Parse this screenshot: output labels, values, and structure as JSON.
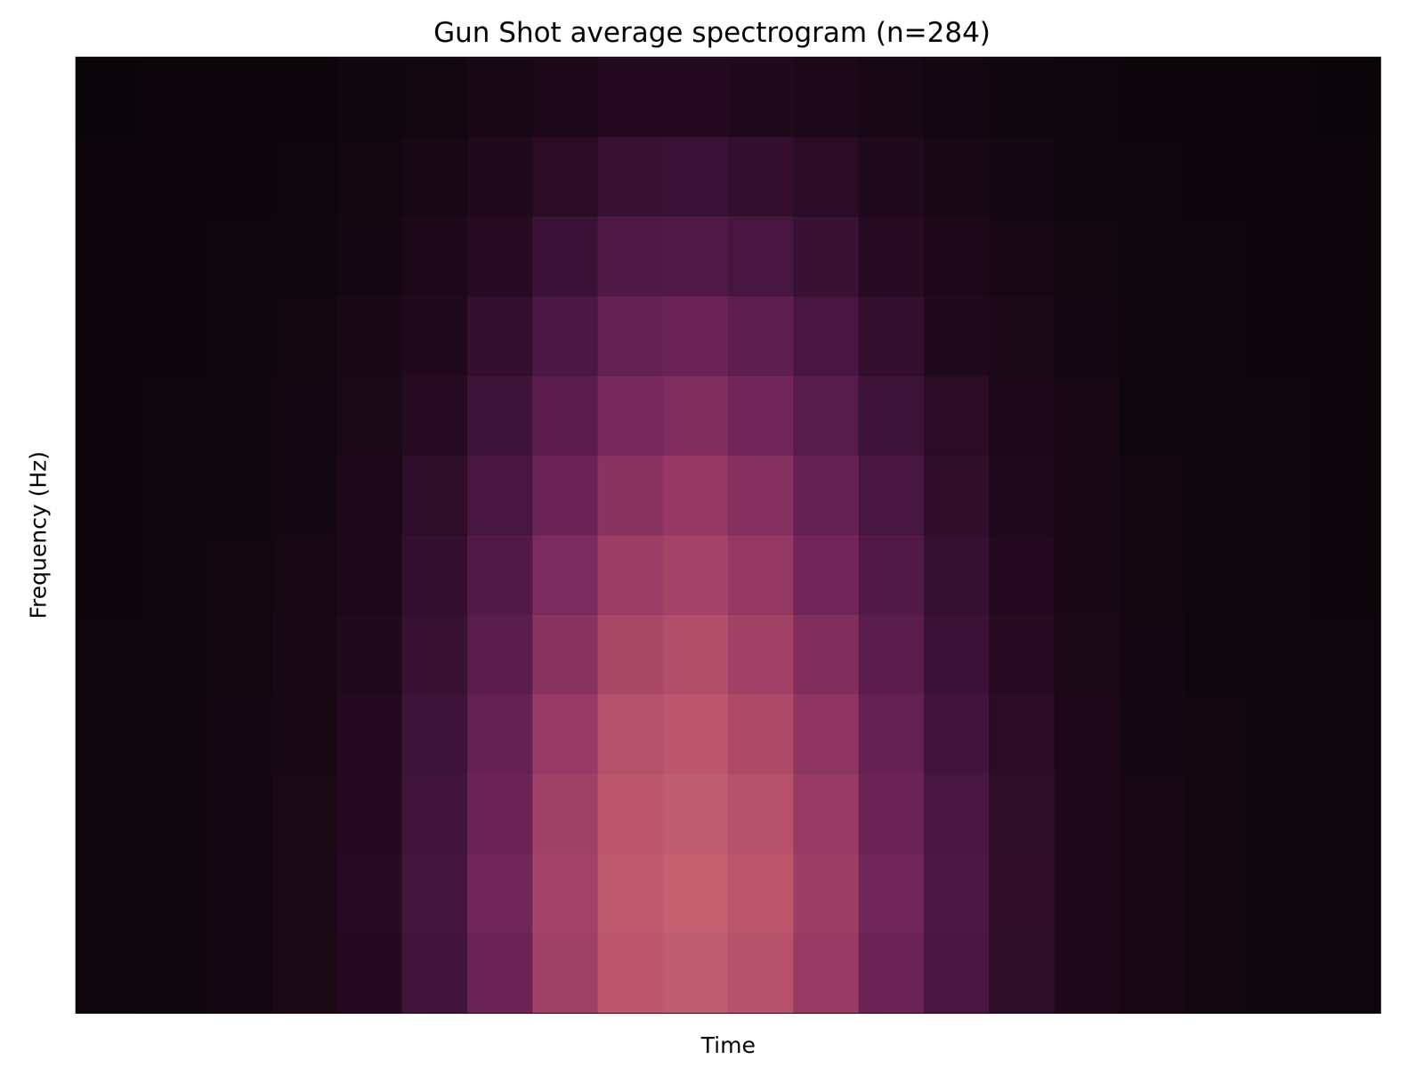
{
  "chart_data": {
    "type": "heatmap",
    "title": "Gun Shot average spectrogram (n=284)",
    "x_label": "Time",
    "y_label": "Frequency (Hz)",
    "tick_labels": false,
    "values": [
      [
        2,
        3,
        5,
        8,
        13,
        23,
        36,
        53,
        67,
        71,
        63,
        50,
        36,
        25,
        16,
        10,
        6,
        4,
        3,
        2
      ],
      [
        2,
        3,
        5,
        8,
        14,
        24,
        38,
        55,
        70,
        74,
        66,
        52,
        38,
        26,
        17,
        10,
        6,
        4,
        3,
        2
      ],
      [
        2,
        3,
        5,
        8,
        13,
        23,
        36,
        53,
        67,
        71,
        63,
        50,
        36,
        25,
        16,
        10,
        6,
        4,
        3,
        2
      ],
      [
        2,
        3,
        5,
        7,
        13,
        22,
        34,
        50,
        63,
        67,
        59,
        47,
        34,
        23,
        15,
        9,
        5,
        4,
        3,
        2
      ],
      [
        2,
        2,
        4,
        7,
        11,
        20,
        31,
        45,
        57,
        61,
        54,
        43,
        31,
        21,
        14,
        8,
        5,
        3,
        2,
        2
      ],
      [
        1,
        2,
        4,
        6,
        10,
        18,
        28,
        41,
        52,
        55,
        49,
        38,
        28,
        19,
        13,
        7,
        4,
        3,
        2,
        1
      ],
      [
        1,
        2,
        3,
        5,
        9,
        16,
        25,
        36,
        46,
        49,
        44,
        34,
        25,
        17,
        11,
        7,
        4,
        3,
        2,
        1
      ],
      [
        1,
        2,
        3,
        5,
        8,
        14,
        22,
        31,
        40,
        42,
        38,
        30,
        22,
        15,
        10,
        6,
        3,
        2,
        2,
        1
      ],
      [
        1,
        1,
        2,
        4,
        7,
        12,
        18,
        26,
        34,
        36,
        32,
        25,
        18,
        12,
        8,
        5,
        3,
        2,
        1,
        1
      ],
      [
        1,
        1,
        2,
        3,
        5,
        9,
        14,
        21,
        27,
        28,
        25,
        20,
        14,
        10,
        6,
        4,
        2,
        2,
        1,
        1
      ],
      [
        1,
        1,
        1,
        2,
        4,
        7,
        11,
        15,
        20,
        21,
        18,
        15,
        11,
        7,
        5,
        3,
        2,
        1,
        1,
        1
      ],
      [
        0,
        1,
        1,
        1,
        3,
        4,
        7,
        10,
        13,
        13,
        12,
        9,
        7,
        5,
        3,
        2,
        1,
        1,
        1,
        0
      ]
    ]
  }
}
